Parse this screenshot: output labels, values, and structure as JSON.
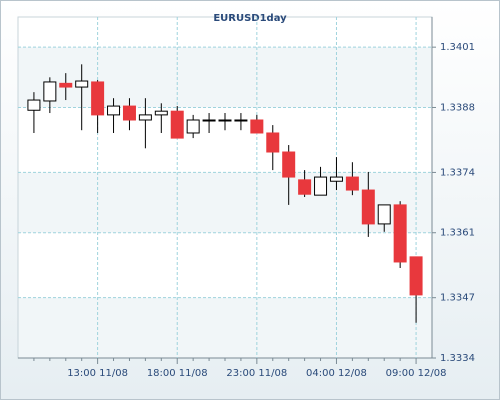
{
  "chart_data": {
    "type": "candlestick",
    "title": "EURUSD1day",
    "categories": [
      null,
      null,
      null,
      null,
      "13:00 11/08",
      null,
      null,
      null,
      null,
      "18:00 11/08",
      null,
      null,
      null,
      null,
      "23:00 11/08",
      null,
      null,
      null,
      null,
      "04:00 12/08",
      null,
      null,
      null,
      null,
      "09:00 12/08"
    ],
    "open": [
      1.33874,
      1.33894,
      1.33932,
      1.33924,
      1.33935,
      1.33864,
      1.33883,
      1.33853,
      1.33864,
      1.33872,
      1.33825,
      1.33851,
      1.33853,
      1.33853,
      1.33853,
      1.33825,
      1.33784,
      1.33724,
      1.33691,
      1.33721,
      1.3373,
      1.33702,
      1.33629,
      1.3367,
      1.33558
    ],
    "high": [
      1.33913,
      1.33945,
      1.33954,
      1.33973,
      1.33939,
      1.339,
      1.339,
      1.339,
      1.33889,
      1.33883,
      1.33864,
      1.33868,
      1.33868,
      1.33868,
      1.33864,
      1.33842,
      1.33799,
      1.33745,
      1.33752,
      1.33773,
      1.33762,
      1.33741,
      1.3367,
      1.33678,
      1.33558
    ],
    "low": [
      1.33825,
      1.33868,
      1.33896,
      1.33831,
      1.33825,
      1.33825,
      1.33831,
      1.33792,
      1.33825,
      1.33814,
      1.33814,
      1.33825,
      1.33831,
      1.33831,
      1.33825,
      1.33745,
      1.3367,
      1.33687,
      1.33691,
      1.33702,
      1.33691,
      1.33601,
      1.33612,
      1.33534,
      1.33416
    ],
    "close": [
      1.33896,
      1.33935,
      1.33924,
      1.33937,
      1.33864,
      1.33883,
      1.33853,
      1.33864,
      1.33872,
      1.33814,
      1.33853,
      1.33853,
      1.33853,
      1.33853,
      1.33825,
      1.33784,
      1.3373,
      1.33693,
      1.3373,
      1.3373,
      1.33702,
      1.33629,
      1.3367,
      1.33547,
      1.33476
    ],
    "up_color": "#ffffff",
    "down_color": "#e8383d",
    "ylim": [
      1.3334,
      1.34075
    ],
    "yticks": [
      1.3334,
      1.3347,
      1.3361,
      1.3374,
      1.3388,
      1.3401
    ],
    "grid": true
  }
}
